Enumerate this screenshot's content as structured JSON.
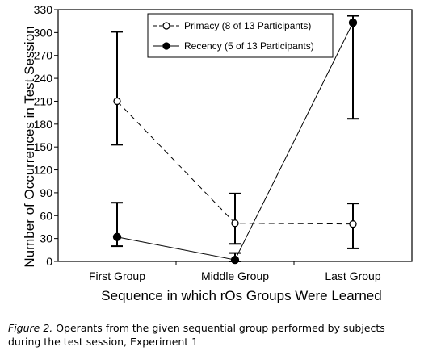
{
  "chart_data": {
    "type": "line",
    "categories": [
      "First Group",
      "Middle Group",
      "Last Group"
    ],
    "xlabel": "Sequence in which rOs Groups Were Learned",
    "ylabel": "Number of Occurrences in Test Session",
    "ylim": [
      0,
      330
    ],
    "yticks": [
      0,
      30,
      60,
      90,
      120,
      150,
      180,
      210,
      240,
      270,
      300,
      330
    ],
    "grid": false,
    "legend_position": "top-right",
    "series": [
      {
        "name": "Primacy (8 of 13 Participants)",
        "marker": "open-circle",
        "line": "dashed",
        "values": [
          210,
          50,
          49
        ],
        "error_low": [
          153,
          23,
          17
        ],
        "error_high": [
          301,
          89,
          76
        ]
      },
      {
        "name": "Recency (5 of 13 Participants)",
        "marker": "filled-circle",
        "line": "solid",
        "values": [
          32,
          2,
          313
        ],
        "error_low": [
          20,
          0,
          187
        ],
        "error_high": [
          77,
          11,
          322
        ]
      }
    ]
  },
  "caption": {
    "figure_label": "Figure 2.",
    "text": " Operants from the given sequential group performed by subjects during the test session, Experiment 1"
  }
}
